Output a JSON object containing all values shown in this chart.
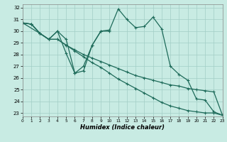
{
  "xlabel": "Humidex (Indice chaleur)",
  "xlim": [
    0,
    23
  ],
  "ylim": [
    22.7,
    32.3
  ],
  "yticks": [
    23,
    24,
    25,
    26,
    27,
    28,
    29,
    30,
    31,
    32
  ],
  "xticks": [
    0,
    1,
    2,
    3,
    4,
    5,
    6,
    7,
    8,
    9,
    10,
    11,
    12,
    13,
    14,
    15,
    16,
    17,
    18,
    19,
    20,
    21,
    22,
    23
  ],
  "bg_color": "#c8ebe3",
  "grid_color": "#a2cec6",
  "line_color": "#1e6b5a",
  "line1_x": [
    0,
    1,
    2,
    3,
    4,
    5,
    6,
    7,
    8,
    9,
    10,
    11,
    12,
    13,
    14,
    15,
    16,
    17,
    18,
    19,
    20,
    21,
    22,
    23
  ],
  "line1_y": [
    30.7,
    30.6,
    29.8,
    29.3,
    30.0,
    29.3,
    26.4,
    27.0,
    28.8,
    30.0,
    30.1,
    31.9,
    31.0,
    30.3,
    30.4,
    31.2,
    30.2,
    27.0,
    26.3,
    25.8,
    24.2,
    24.1,
    23.1,
    22.8
  ],
  "line2_x": [
    0,
    1,
    2,
    3,
    4,
    5,
    6,
    7,
    8,
    9,
    10,
    11,
    12,
    13,
    14,
    15,
    16,
    17,
    18,
    19,
    20,
    21,
    22,
    23
  ],
  "line2_y": [
    30.7,
    30.6,
    29.8,
    29.3,
    29.3,
    28.8,
    28.3,
    27.8,
    27.3,
    26.9,
    26.4,
    25.9,
    25.5,
    25.1,
    24.7,
    24.3,
    23.9,
    23.6,
    23.4,
    23.2,
    23.1,
    23.0,
    23.0,
    22.8
  ],
  "line3_x": [
    0,
    1,
    2,
    3,
    4,
    5,
    6,
    7,
    8,
    9,
    10,
    11,
    12,
    13,
    14,
    15,
    16,
    17,
    18,
    19,
    20,
    21,
    22,
    23
  ],
  "line3_y": [
    30.7,
    30.6,
    29.8,
    29.3,
    29.3,
    28.8,
    28.4,
    28.0,
    27.7,
    27.4,
    27.1,
    26.8,
    26.5,
    26.2,
    26.0,
    25.8,
    25.6,
    25.4,
    25.3,
    25.1,
    25.0,
    24.9,
    24.8,
    22.8
  ],
  "line4_x": [
    0,
    2,
    3,
    4,
    5,
    6,
    7,
    8,
    9,
    10
  ],
  "line4_y": [
    30.7,
    29.8,
    29.3,
    30.0,
    28.1,
    26.4,
    26.6,
    28.8,
    30.0,
    30.0
  ]
}
